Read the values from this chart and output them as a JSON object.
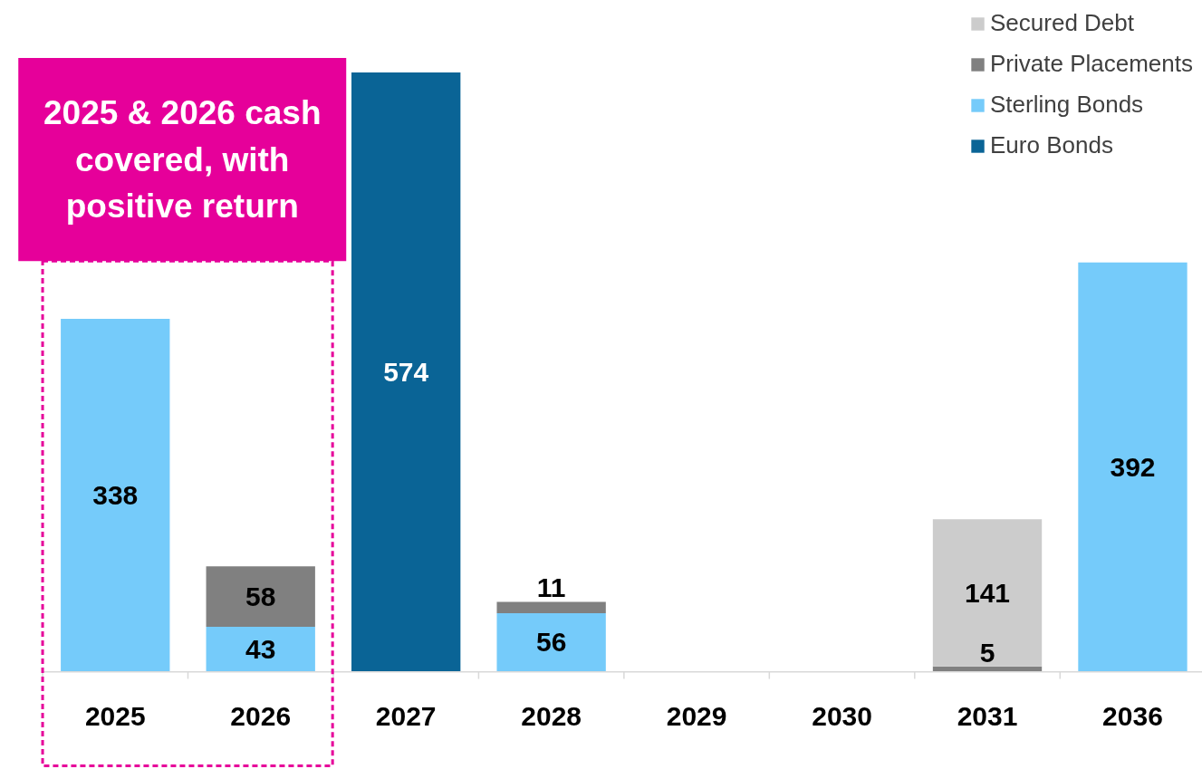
{
  "chart_data": {
    "type": "bar",
    "stacked": true,
    "categories": [
      "2025",
      "2026",
      "2027",
      "2028",
      "2029",
      "2030",
      "2031",
      "2036"
    ],
    "series": [
      {
        "name": "Euro Bonds",
        "color": "#0a6496",
        "values": [
          null,
          null,
          574,
          null,
          null,
          null,
          null,
          null
        ],
        "value_labels": [
          null,
          null,
          "574",
          null,
          null,
          null,
          null,
          null
        ]
      },
      {
        "name": "Sterling Bonds",
        "color": "#75cbfa",
        "values": [
          338,
          43,
          null,
          56,
          null,
          null,
          null,
          392
        ],
        "value_labels": [
          "338",
          "43",
          null,
          "56",
          null,
          null,
          null,
          "392"
        ]
      },
      {
        "name": "Private Placements",
        "color": "#808080",
        "values": [
          null,
          58,
          null,
          11,
          null,
          null,
          5,
          null
        ],
        "value_labels": [
          null,
          "58",
          null,
          "11",
          null,
          null,
          "5",
          null
        ]
      },
      {
        "name": "Secured Debt",
        "color": "#cccccc",
        "values": [
          null,
          null,
          null,
          null,
          null,
          null,
          141,
          null
        ],
        "value_labels": [
          null,
          null,
          null,
          null,
          null,
          null,
          "141",
          null
        ]
      }
    ],
    "legend": "top right",
    "grid": false,
    "annotations": [
      "2025 & 2026 cash covered, with positive return"
    ]
  }
}
